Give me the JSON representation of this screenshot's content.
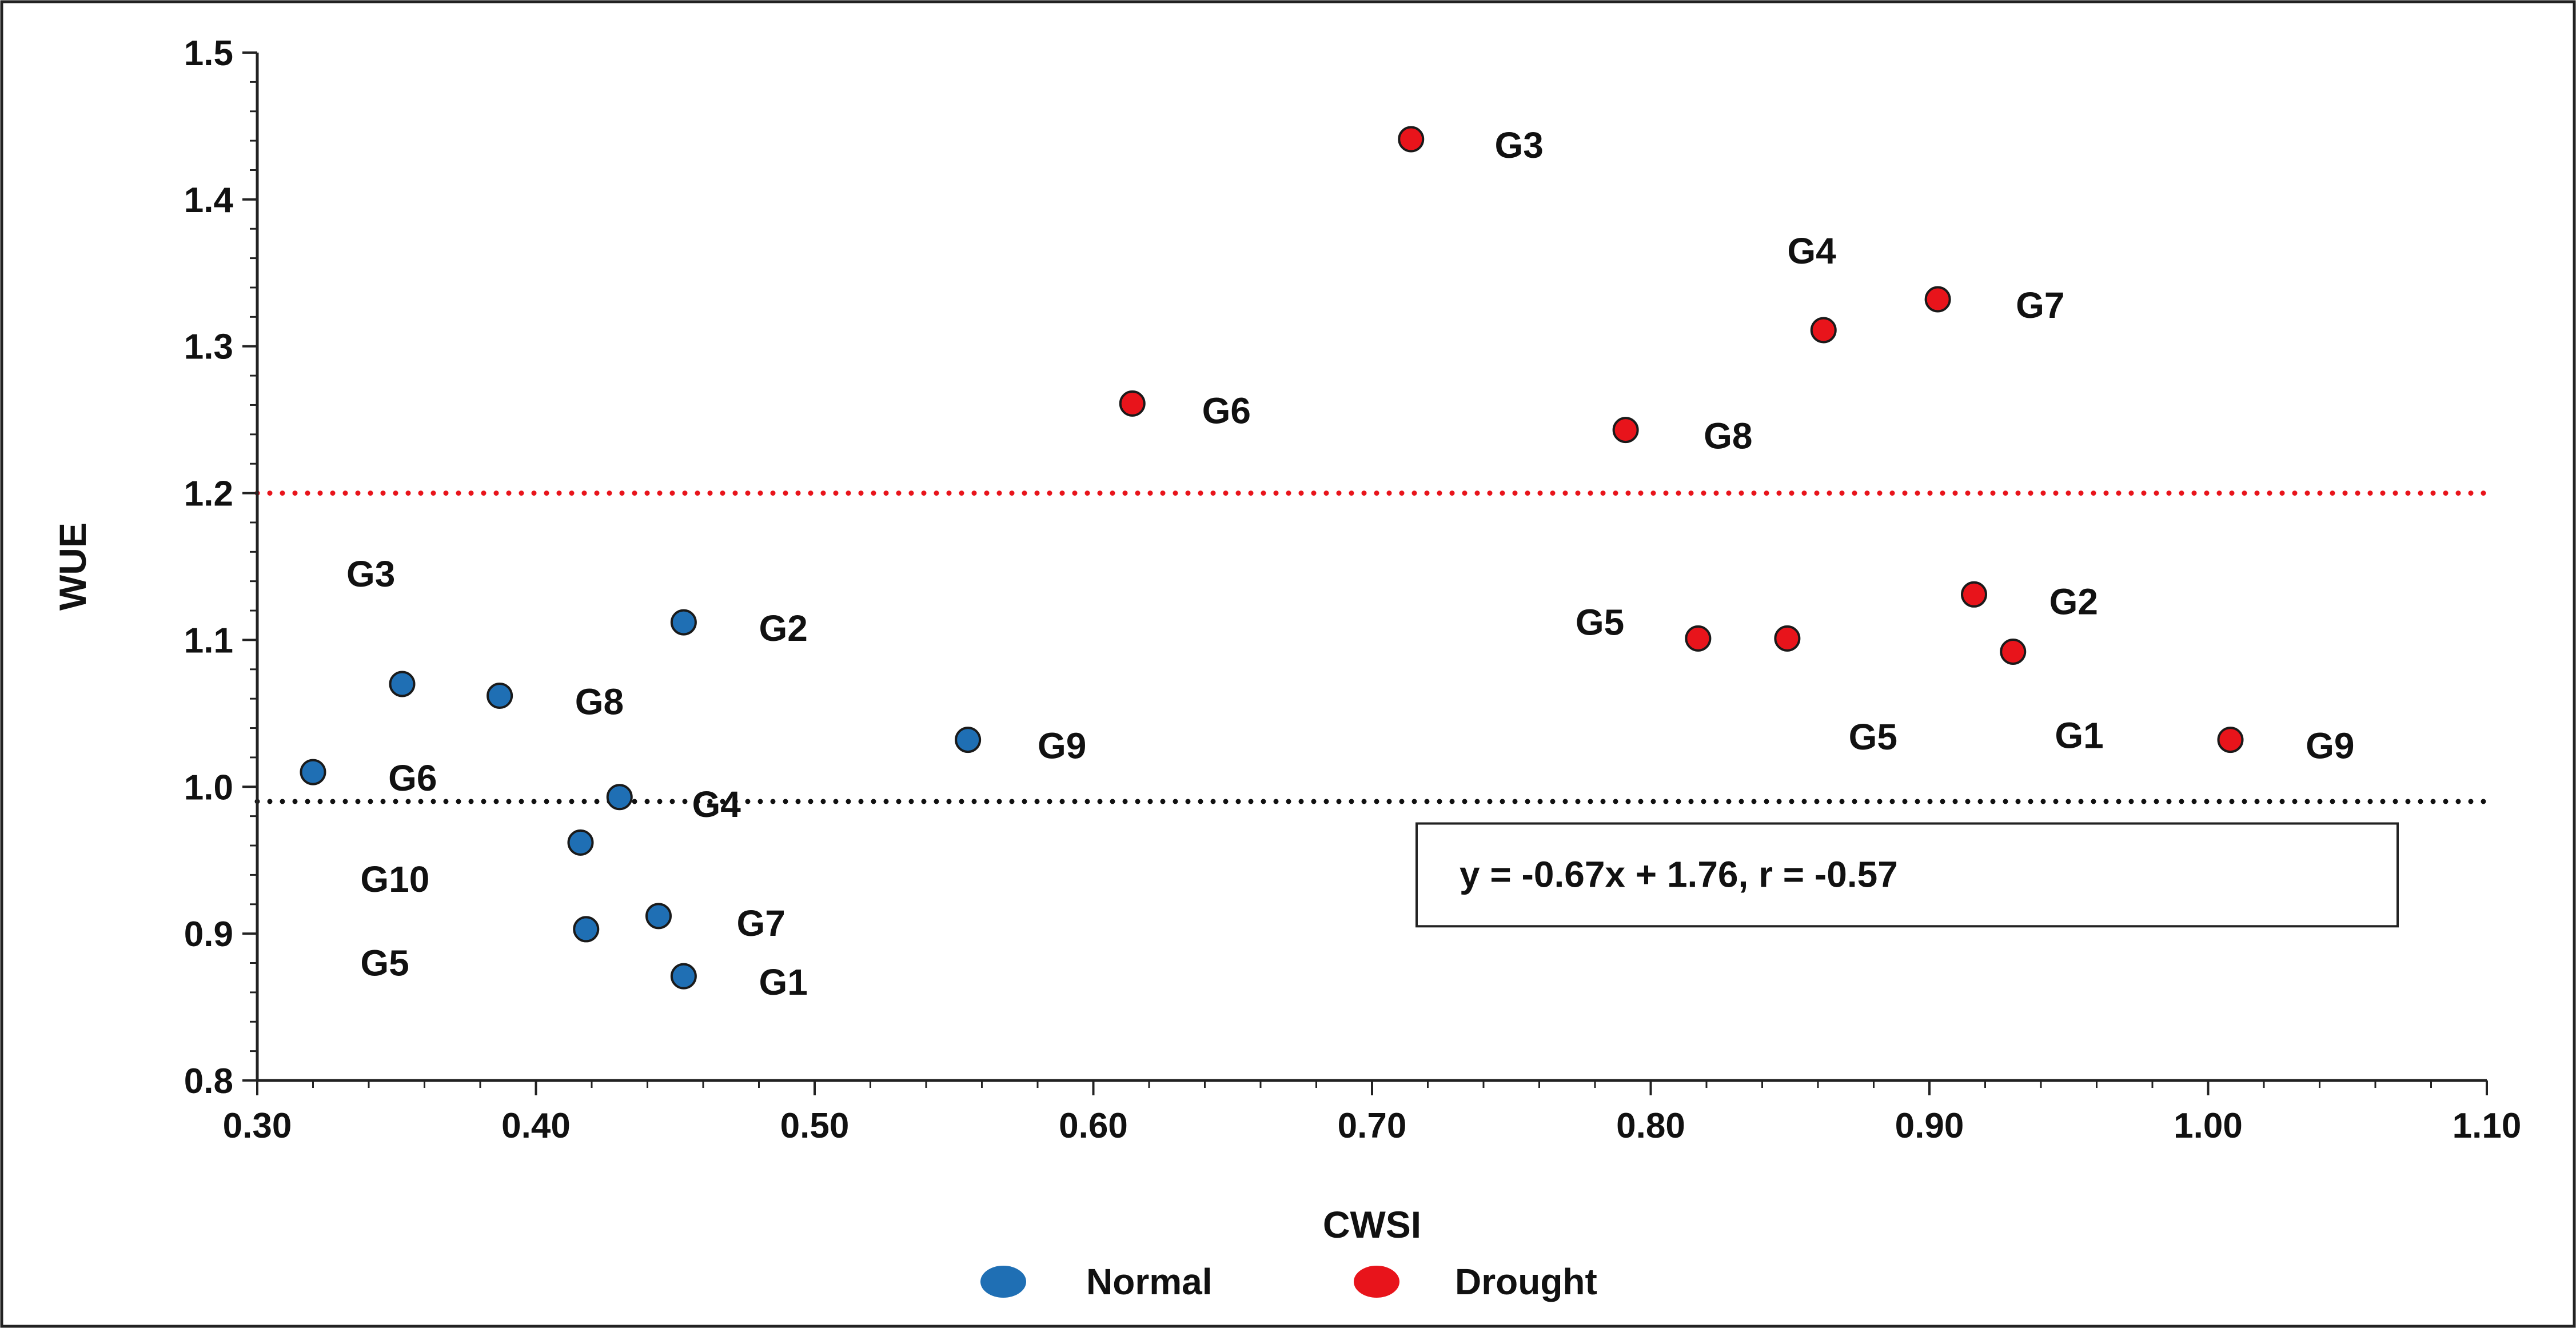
{
  "chart_data": {
    "type": "scatter",
    "title": "",
    "xlabel": "CWSI",
    "ylabel": "WUE",
    "xlim": [
      0.3,
      1.1
    ],
    "ylim": [
      0.8,
      1.5
    ],
    "x_ticks": [
      "0.30",
      "0.40",
      "0.50",
      "0.60",
      "0.70",
      "0.80",
      "0.90",
      "1.00",
      "1.10"
    ],
    "y_ticks": [
      "0.8",
      "0.9",
      "1.0",
      "1.1",
      "1.2",
      "1.3",
      "1.4",
      "1.5"
    ],
    "x_tick_values": [
      0.3,
      0.4,
      0.5,
      0.6,
      0.7,
      0.8,
      0.9,
      1.0,
      1.1
    ],
    "y_tick_values": [
      0.8,
      0.9,
      1.0,
      1.1,
      1.2,
      1.3,
      1.4,
      1.5
    ],
    "grid": false,
    "legend_position": "bottom-center",
    "series": [
      {
        "name": "Normal",
        "color": "#1f6fb4",
        "points": [
          {
            "x": 0.453,
            "y": 1.112
          },
          {
            "x": 0.352,
            "y": 1.07
          },
          {
            "x": 0.387,
            "y": 1.062
          },
          {
            "x": 0.32,
            "y": 1.01
          },
          {
            "x": 0.555,
            "y": 1.032
          },
          {
            "x": 0.43,
            "y": 0.993
          },
          {
            "x": 0.416,
            "y": 0.962
          },
          {
            "x": 0.444,
            "y": 0.912
          },
          {
            "x": 0.418,
            "y": 0.903
          },
          {
            "x": 0.453,
            "y": 0.871
          }
        ]
      },
      {
        "name": "Drought",
        "color": "#e8141b",
        "points": [
          {
            "x": 0.714,
            "y": 1.441
          },
          {
            "x": 0.903,
            "y": 1.332
          },
          {
            "x": 0.862,
            "y": 1.311
          },
          {
            "x": 0.614,
            "y": 1.261
          },
          {
            "x": 0.791,
            "y": 1.243
          },
          {
            "x": 0.916,
            "y": 1.131
          },
          {
            "x": 0.817,
            "y": 1.101
          },
          {
            "x": 0.849,
            "y": 1.101
          },
          {
            "x": 0.93,
            "y": 1.092
          },
          {
            "x": 1.008,
            "y": 1.032
          }
        ]
      }
    ],
    "point_labels": [
      {
        "text": "G2",
        "x": 0.48,
        "y": 1.108
      },
      {
        "text": "G3",
        "x": 0.332,
        "y": 1.145
      },
      {
        "text": "G8",
        "x": 0.414,
        "y": 1.058
      },
      {
        "text": "G6",
        "x": 0.347,
        "y": 1.006
      },
      {
        "text": "G9",
        "x": 0.58,
        "y": 1.028
      },
      {
        "text": "G4",
        "x": 0.456,
        "y": 0.988
      },
      {
        "text": "G10",
        "x": 0.337,
        "y": 0.937
      },
      {
        "text": "G7",
        "x": 0.472,
        "y": 0.907
      },
      {
        "text": "G5",
        "x": 0.337,
        "y": 0.88
      },
      {
        "text": "G1",
        "x": 0.48,
        "y": 0.867
      },
      {
        "text": "G3",
        "x": 0.744,
        "y": 1.437
      },
      {
        "text": "G4",
        "x": 0.849,
        "y": 1.365
      },
      {
        "text": "G7",
        "x": 0.931,
        "y": 1.328
      },
      {
        "text": "G6",
        "x": 0.639,
        "y": 1.256
      },
      {
        "text": "G8",
        "x": 0.819,
        "y": 1.239
      },
      {
        "text": "G2",
        "x": 0.943,
        "y": 1.126
      },
      {
        "text": "G5",
        "x": 0.773,
        "y": 1.112
      },
      {
        "text": "G5",
        "x": 0.871,
        "y": 1.034
      },
      {
        "text": "G1",
        "x": 0.945,
        "y": 1.035
      },
      {
        "text": "G9",
        "x": 1.035,
        "y": 1.028
      }
    ],
    "reference_lines": [
      {
        "y": 1.2,
        "color": "#e8141b",
        "style": "dotted"
      },
      {
        "y": 0.99,
        "color": "#111111",
        "style": "dotted"
      }
    ],
    "annotation": {
      "text": "y = -0.67x + 1.76, r = -0.57",
      "x_min": 0.716,
      "x_max": 1.068,
      "y_min": 0.905,
      "y_max": 0.975
    }
  }
}
